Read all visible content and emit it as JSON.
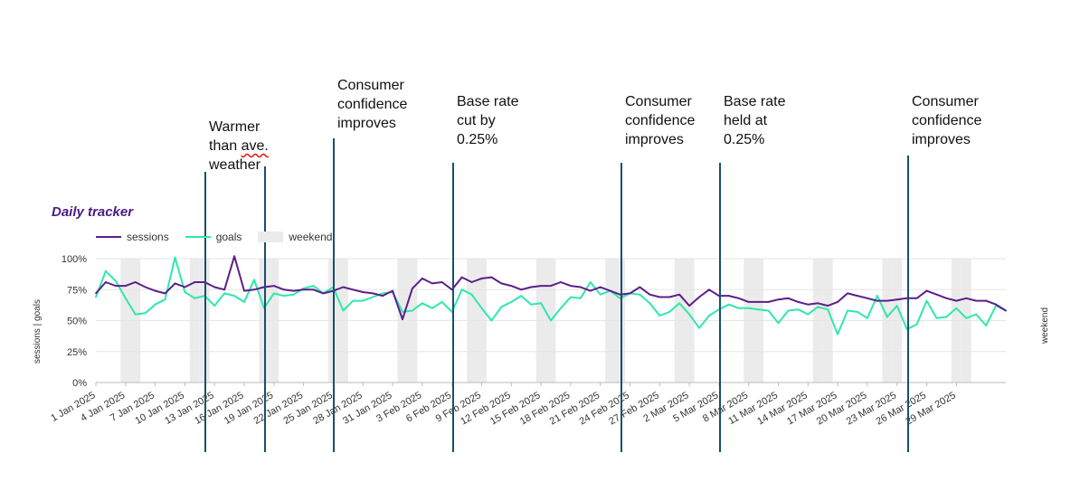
{
  "chart_data": {
    "type": "line",
    "title": "Daily tracker",
    "ylabel": "sessions | goals",
    "right_label": "weekend",
    "ylim": [
      0,
      100
    ],
    "y_ticks": [
      "0%",
      "25%",
      "50%",
      "75%",
      "100%"
    ],
    "x_start": "2025-01-01",
    "x_end": "2025-03-31",
    "x_tick_labels": [
      "1 Jan 2025",
      "4 Jan 2025",
      "7 Jan 2025",
      "10 Jan 2025",
      "13 Jan 2025",
      "16 Jan 2025",
      "19 Jan 2025",
      "22 Jan 2025",
      "25 Jan 2025",
      "28 Jan 2025",
      "31 Jan 2025",
      "3 Feb 2025",
      "6 Feb 2025",
      "9 Feb 2025",
      "12 Feb 2025",
      "15 Feb 2025",
      "18 Feb 2025",
      "21 Feb 2025",
      "24 Feb 2025",
      "27 Feb 2025",
      "2 Mar 2025",
      "5 Mar 2025",
      "8 Mar 2025",
      "11 Mar 2025",
      "14 Mar 2025",
      "17 Mar 2025",
      "20 Mar 2025",
      "23 Mar 2025",
      "26 Mar 2025",
      "29 Mar 2025"
    ],
    "legend": [
      "sessions",
      "goals",
      "weekend"
    ],
    "legend_position": "top-left",
    "grid": true,
    "colors": {
      "sessions": "#5b1f8a",
      "goals": "#2ee8ad",
      "weekend": "#ebebeb",
      "annotation_line": "#1a4f6e"
    },
    "series": [
      {
        "name": "sessions",
        "values": [
          72,
          81,
          78,
          78,
          81,
          77,
          74,
          72,
          80,
          77,
          81,
          81,
          77,
          75,
          102,
          74,
          75,
          77,
          78,
          75,
          74,
          75,
          75,
          72,
          74,
          77,
          75,
          73,
          72,
          70,
          74,
          51,
          76,
          84,
          80,
          81,
          75,
          85,
          81,
          84,
          85,
          80,
          78,
          75,
          77,
          78,
          78,
          81,
          78,
          77,
          74,
          77,
          74,
          71,
          72,
          77,
          71,
          69,
          69,
          71,
          62,
          69,
          75,
          70,
          70,
          68,
          65,
          65,
          65,
          67,
          68,
          65,
          63,
          64,
          62,
          65,
          72,
          70,
          68,
          66,
          66,
          67,
          68,
          68,
          74,
          71,
          68,
          66,
          68,
          66,
          66,
          63,
          58
        ],
        "note": "approximate daily percentage values, 1 Jan - 2 Apr 2025"
      },
      {
        "name": "goals",
        "values": [
          69,
          90,
          82,
          68,
          55,
          56,
          63,
          67,
          101,
          73,
          68,
          70,
          62,
          72,
          70,
          65,
          83,
          60,
          72,
          70,
          71,
          76,
          78,
          72,
          77,
          58,
          66,
          66,
          69,
          72,
          73,
          57,
          58,
          64,
          60,
          65,
          57,
          75,
          71,
          60,
          50,
          61,
          65,
          70,
          63,
          64,
          50,
          60,
          69,
          68,
          81,
          71,
          74,
          68,
          72,
          71,
          64,
          54,
          57,
          64,
          55,
          44,
          54,
          59,
          63,
          60,
          60,
          59,
          58,
          48,
          58,
          59,
          55,
          61,
          59,
          39,
          58,
          57,
          52,
          70,
          53,
          62,
          43,
          47,
          66,
          52,
          53,
          60,
          52,
          55,
          46,
          62,
          58
        ]
      }
    ],
    "weekend_dates": [
      "2025-01-04",
      "2025-01-05",
      "2025-01-11",
      "2025-01-12",
      "2025-01-18",
      "2025-01-19",
      "2025-01-25",
      "2025-01-26",
      "2025-02-01",
      "2025-02-02",
      "2025-02-08",
      "2025-02-09",
      "2025-02-15",
      "2025-02-16",
      "2025-02-22",
      "2025-02-23",
      "2025-03-01",
      "2025-03-02",
      "2025-03-08",
      "2025-03-09",
      "2025-03-15",
      "2025-03-16",
      "2025-03-22",
      "2025-03-23",
      "2025-03-29",
      "2025-03-30"
    ]
  },
  "annotations": [
    {
      "date": "2025-01-12",
      "lines": [
        "Warmer",
        "than ave.",
        "weather"
      ],
      "wavy_line": 1
    },
    {
      "date": "2025-01-18",
      "lines": []
    },
    {
      "date": "2025-01-25",
      "lines": [
        "Consumer",
        "confidence",
        "improves"
      ]
    },
    {
      "date": "2025-02-06",
      "lines": [
        "Base rate",
        "cut by",
        "0.25%"
      ]
    },
    {
      "date": "2025-02-23",
      "lines": [
        "Consumer",
        "confidence",
        "improves"
      ]
    },
    {
      "date": "2025-03-05",
      "lines": [
        "Base rate",
        "held at",
        "0.25%"
      ]
    },
    {
      "date": "2025-03-24",
      "lines": [
        "Consumer",
        "confidence",
        "improves"
      ]
    }
  ]
}
